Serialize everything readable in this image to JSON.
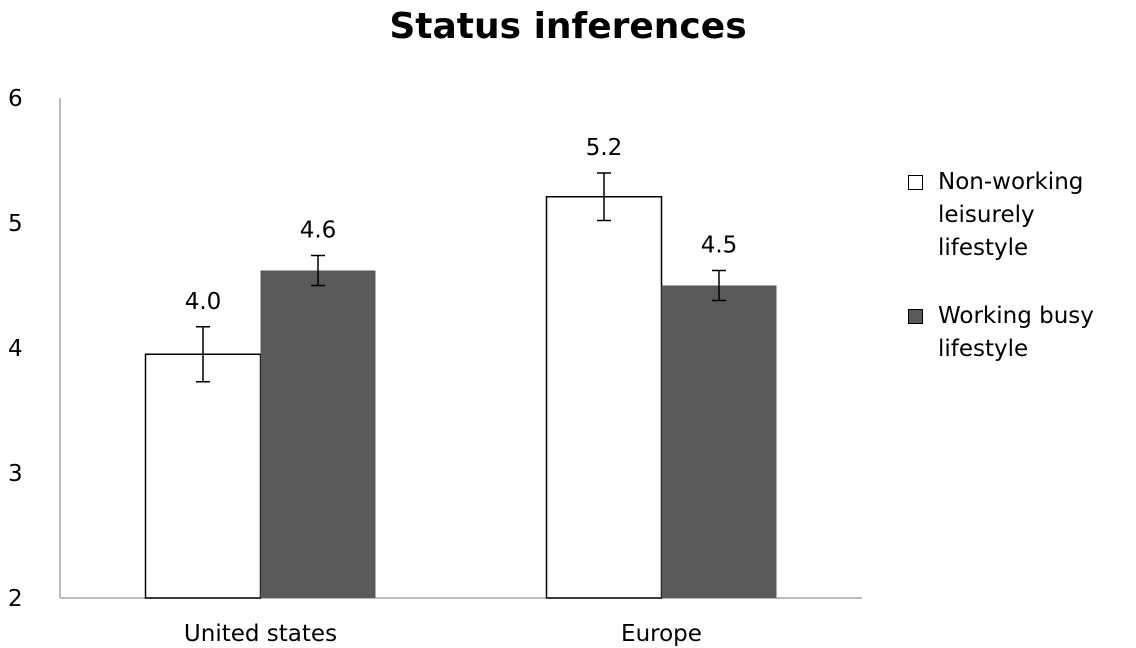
{
  "chart_data": {
    "type": "bar",
    "title": "Status inferences",
    "categories": [
      "United states",
      "Europe"
    ],
    "series": [
      {
        "name": "Non-working leisurely lifestyle",
        "values": [
          3.95,
          5.21
        ],
        "data_labels": [
          "4.0",
          "5.2"
        ],
        "error": [
          0.22,
          0.19
        ],
        "color": "#ffffff"
      },
      {
        "name": "Working busy lifestyle",
        "values": [
          4.62,
          4.5
        ],
        "data_labels": [
          "4.6",
          "4.5"
        ],
        "error": [
          0.12,
          0.12
        ],
        "color": "#595959"
      }
    ],
    "ylim": [
      2,
      6
    ],
    "yticks": [
      "2",
      "3",
      "4",
      "5",
      "6"
    ],
    "xlabel": "",
    "ylabel": "",
    "grid": false,
    "legend_position": "right"
  }
}
